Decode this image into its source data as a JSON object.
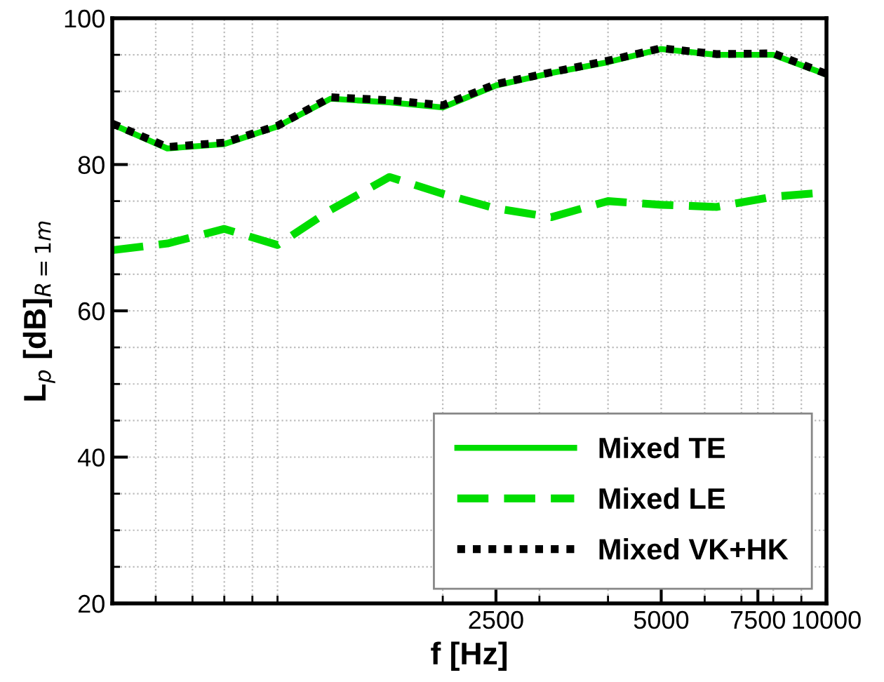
{
  "chart_data": {
    "type": "line",
    "xlabel": "f [Hz]",
    "ylabel": "L$_{p}$ [dB]$_{R=1m}$",
    "x": [
      500,
      630,
      800,
      1000,
      1250,
      1600,
      2000,
      2500,
      3150,
      4000,
      5000,
      6300,
      8000,
      10000
    ],
    "series": [
      {
        "name": "Mixed TE",
        "color": "#00dd00",
        "line_style": "solid",
        "values": [
          85.5,
          82.2,
          82.8,
          85.2,
          89,
          88.5,
          87.8,
          90.8,
          92.5,
          94,
          95.8,
          95,
          95,
          92.3
        ]
      },
      {
        "name": "Mixed LE",
        "color": "#00dd00",
        "line_style": "dashed",
        "values": [
          68.3,
          69.2,
          71.2,
          69,
          73.8,
          78.3,
          76,
          74,
          72.8,
          75,
          74.5,
          74.2,
          75.6,
          76.2
        ]
      },
      {
        "name": "Mixed VK+HK",
        "color": "#000000",
        "line_style": "dotted",
        "values": [
          85.6,
          82.4,
          83,
          85.3,
          89.2,
          88.8,
          88.1,
          91,
          92.6,
          94.2,
          95.9,
          95.1,
          95.2,
          92.4
        ]
      }
    ],
    "log": "x",
    "xlim": [
      500,
      10000
    ],
    "xticks": [
      2500,
      5000,
      7500,
      10000
    ],
    "ylim": [
      20,
      100
    ],
    "yticks": [
      20,
      40,
      60,
      80,
      100
    ],
    "grid": true,
    "legend": "bottom right",
    "marker": "none"
  }
}
